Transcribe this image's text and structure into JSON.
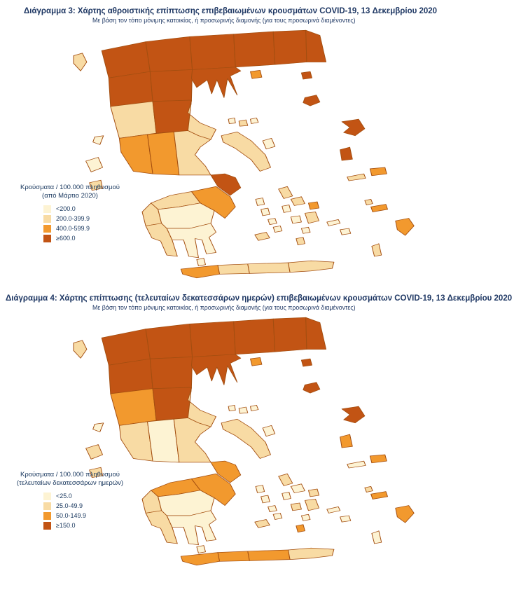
{
  "palette": {
    "levels": [
      "#FDF3D3",
      "#F8DBA4",
      "#F2992E",
      "#C25414"
    ],
    "border": "#A34E10"
  },
  "figure3": {
    "title": "Διάγραμμα 3: Χάρτης αθροιστικής επίπτωσης επιβεβαιωμένων κρουσμάτων COVID-19, 13 Δεκεμβρίου 2020",
    "subtitle": "Με βάση τον τόπο μόνιμης κατοικίας, ή προσωρινής διαμονής (για τους προσωρινά διαμένοντες)",
    "legend": {
      "title_line1": "Κρούσματα / 100.000 πληθυσμού",
      "title_line2": "(από Μάρτιο 2020)",
      "items": [
        {
          "label": "<200.0",
          "level": 0
        },
        {
          "label": "200.0-399.9",
          "level": 1
        },
        {
          "label": "400.0-599.9",
          "level": 2
        },
        {
          "label": "≥600.0",
          "level": 3
        }
      ]
    },
    "regions": {
      "n1": 3,
      "n2": 3,
      "n3": 3,
      "n4": 3,
      "n5": 3,
      "n6": 3,
      "m1": 3,
      "m2": 3,
      "ch": 3,
      "m3": 1,
      "m4": 3,
      "m5": 1,
      "m6": 2,
      "m7": 2,
      "m8": 1,
      "m10": 3,
      "eu": 1,
      "pr1": 2,
      "pr2": 1,
      "pr3": 1,
      "pr4": 0,
      "pr5": 1,
      "pr6": 0,
      "cr1": 2,
      "cr2": 1,
      "cr3": 1,
      "cr4": 1,
      "corfu": 1,
      "lefkada": 0,
      "kefalonia": 0,
      "zakynthos": 1,
      "thasos": 2,
      "samothraki": 3,
      "limnos": 3,
      "lesvos": 3,
      "chios": 3,
      "samos": 2,
      "ikaria": 1,
      "skiathos": 0,
      "skopelos": 1,
      "alonissos": 0,
      "skyros": 0,
      "andros": 1,
      "tinos": 1,
      "mykonos": 2,
      "syros": 0,
      "kea": 0,
      "kythnos": 0,
      "serifos": 0,
      "sifnos": 0,
      "milos": 1,
      "paros": 0,
      "naxos": 1,
      "ios": 0,
      "santorini": 1,
      "amorgos": 0,
      "astypalea": 0,
      "kos": 2,
      "kalymnos": 1,
      "rhodes": 2,
      "karpathos": 1,
      "kythira": 0
    }
  },
  "figure4": {
    "title": "Διάγραμμα 4: Χάρτης επίπτωσης (τελευταίων δεκατεσσάρων ημερών) επιβεβαιωμένων κρουσμάτων COVID-19, 13 Δεκεμβρίου 2020",
    "subtitle": "Με βάση τον τόπο μόνιμης κατοικίας, ή προσωρινής διαμονής (για τους προσωρινά διαμένοντες)",
    "legend": {
      "title_line1": "Κρούσματα / 100.000 πληθυσμού",
      "title_line2": "(τελευταίων δεκατεσσάρων ημερών)",
      "items": [
        {
          "label": "<25.0",
          "level": 0
        },
        {
          "label": "25.0-49.9",
          "level": 1
        },
        {
          "label": "50.0-149.9",
          "level": 2
        },
        {
          "label": "≥150.0",
          "level": 3
        }
      ]
    },
    "regions": {
      "n1": 3,
      "n2": 3,
      "n3": 3,
      "n4": 3,
      "n5": 3,
      "n6": 3,
      "m1": 3,
      "m2": 3,
      "ch": 3,
      "m3": 2,
      "m4": 3,
      "m5": 1,
      "m6": 1,
      "m7": 0,
      "m8": 1,
      "m10": 2,
      "eu": 1,
      "pr1": 2,
      "pr2": 2,
      "pr3": 1,
      "pr4": 0,
      "pr5": 1,
      "pr6": 0,
      "cr1": 2,
      "cr2": 2,
      "cr3": 2,
      "cr4": 1,
      "corfu": 1,
      "lefkada": 0,
      "kefalonia": 1,
      "zakynthos": 1,
      "thasos": 2,
      "samothraki": 3,
      "limnos": 3,
      "lesvos": 3,
      "chios": 2,
      "samos": 2,
      "ikaria": 0,
      "skiathos": 0,
      "skopelos": 0,
      "alonissos": 0,
      "skyros": 0,
      "andros": 1,
      "tinos": 0,
      "mykonos": 1,
      "syros": 0,
      "kea": 0,
      "kythnos": 0,
      "serifos": 0,
      "sifnos": 0,
      "milos": 1,
      "paros": 1,
      "naxos": 1,
      "ios": 0,
      "santorini": 2,
      "amorgos": 0,
      "astypalea": 0,
      "kos": 2,
      "kalymnos": 1,
      "rhodes": 2,
      "karpathos": 0,
      "kythira": 0
    }
  }
}
